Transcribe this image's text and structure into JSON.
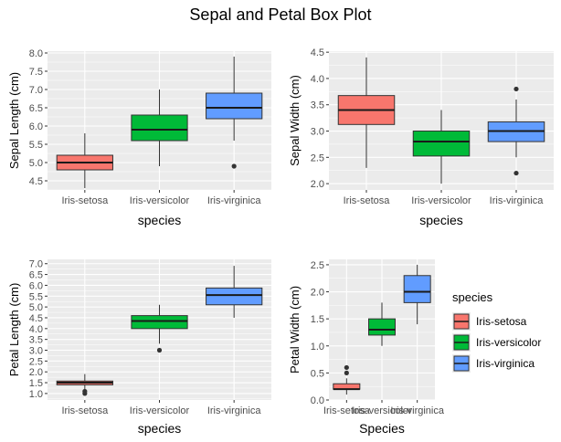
{
  "figure": {
    "title": "Sepal and Petal Box Plot"
  },
  "legend": {
    "title": "species",
    "placement": "right",
    "entries": [
      "Iris-setosa",
      "Iris-versicolor",
      "Iris-virginica"
    ]
  },
  "colors": {
    "Iris-setosa": "#F8766D",
    "Iris-versicolor": "#00BA38",
    "Iris-virginica": "#619CFF",
    "panel_bg": "#EBEBEB",
    "grid": "#FFFFFF",
    "outlier": "#333333"
  },
  "chart_data": [
    {
      "type": "box",
      "categories": [
        "Iris-setosa",
        "Iris-versicolor",
        "Iris-virginica"
      ],
      "xlabel": "species",
      "ylabel": "Sepal Length (cm)",
      "ylim": [
        4.25,
        8.05
      ],
      "yticks": [
        "4.5",
        "5.0",
        "5.5",
        "6.0",
        "6.5",
        "7.0",
        "7.5",
        "8.0"
      ],
      "grid": true,
      "boxes": [
        {
          "min": 4.3,
          "q1": 4.8,
          "median": 5.0,
          "q3": 5.2,
          "max": 5.8,
          "outliers": []
        },
        {
          "min": 4.9,
          "q1": 5.6,
          "median": 5.9,
          "q3": 6.3,
          "max": 7.0,
          "outliers": []
        },
        {
          "min": 5.6,
          "q1": 6.2,
          "median": 6.5,
          "q3": 6.9,
          "max": 7.9,
          "outliers": [
            4.9
          ]
        }
      ]
    },
    {
      "type": "box",
      "categories": [
        "Iris-setosa",
        "Iris-versicolor",
        "Iris-virginica"
      ],
      "xlabel": "species",
      "ylabel": "Sepal Width (cm)",
      "ylim": [
        1.88,
        4.52
      ],
      "yticks": [
        "2.0",
        "2.5",
        "3.0",
        "3.5",
        "4.0",
        "4.5"
      ],
      "grid": true,
      "boxes": [
        {
          "min": 2.3,
          "q1": 3.125,
          "median": 3.4,
          "q3": 3.675,
          "max": 4.4,
          "outliers": []
        },
        {
          "min": 2.0,
          "q1": 2.525,
          "median": 2.8,
          "q3": 3.0,
          "max": 3.4,
          "outliers": []
        },
        {
          "min": 2.5,
          "q1": 2.8,
          "median": 3.0,
          "q3": 3.175,
          "max": 3.6,
          "outliers": [
            3.8,
            2.2
          ]
        }
      ]
    },
    {
      "type": "box",
      "categories": [
        "Iris-setosa",
        "Iris-versicolor",
        "Iris-virginica"
      ],
      "xlabel": "species",
      "ylabel": "Petal Length (cm)",
      "ylim": [
        0.7,
        7.2
      ],
      "yticks": [
        "1.0",
        "1.5",
        "2.0",
        "2.5",
        "3.0",
        "3.5",
        "4.0",
        "4.5",
        "5.0",
        "5.5",
        "6.0",
        "6.5",
        "7.0"
      ],
      "grid": true,
      "boxes": [
        {
          "min": 1.1,
          "q1": 1.4,
          "median": 1.5,
          "q3": 1.575,
          "max": 1.9,
          "outliers": [
            1.0,
            1.1
          ]
        },
        {
          "min": 3.3,
          "q1": 4.0,
          "median": 4.35,
          "q3": 4.6,
          "max": 5.1,
          "outliers": [
            3.0
          ]
        },
        {
          "min": 4.5,
          "q1": 5.1,
          "median": 5.55,
          "q3": 5.875,
          "max": 6.9,
          "outliers": []
        }
      ]
    },
    {
      "type": "box",
      "categories": [
        "Iris-setosa",
        "Iris-versicolor",
        "Iris-virginica"
      ],
      "xlabel": "Species",
      "ylabel": "Petal Width (cm)",
      "ylim": [
        0.0,
        2.6
      ],
      "yticks": [
        "0.0",
        "0.5",
        "1.0",
        "1.5",
        "2.0",
        "2.5"
      ],
      "grid": true,
      "boxes": [
        {
          "min": 0.1,
          "q1": 0.2,
          "median": 0.2,
          "q3": 0.3,
          "max": 0.4,
          "outliers": [
            0.5,
            0.6
          ]
        },
        {
          "min": 1.0,
          "q1": 1.2,
          "median": 1.3,
          "q3": 1.5,
          "max": 1.8,
          "outliers": []
        },
        {
          "min": 1.4,
          "q1": 1.8,
          "median": 2.0,
          "q3": 2.3,
          "max": 2.5,
          "outliers": []
        }
      ]
    }
  ]
}
